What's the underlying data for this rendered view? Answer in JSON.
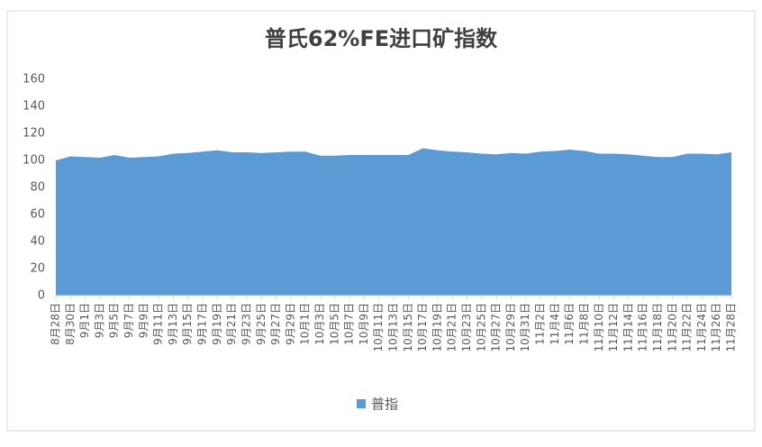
{
  "chart_data": {
    "type": "area",
    "title": "普氏62%FE进口矿指数",
    "categories": [
      "8月28日",
      "8月30日",
      "9月1日",
      "9月3日",
      "9月5日",
      "9月7日",
      "9月9日",
      "9月11日",
      "9月13日",
      "9月15日",
      "9月17日",
      "9月19日",
      "9月21日",
      "9月23日",
      "9月25日",
      "9月27日",
      "9月29日",
      "10月1日",
      "10月3日",
      "10月5日",
      "10月7日",
      "10月9日",
      "10月11日",
      "10月13日",
      "10月15日",
      "10月17日",
      "10月19日",
      "10月21日",
      "10月23日",
      "10月25日",
      "10月27日",
      "10月29日",
      "10月31日",
      "11月2日",
      "11月4日",
      "11月6日",
      "11月8日",
      "11月10日",
      "11月12日",
      "11月14日",
      "11月16日",
      "11月18日",
      "11月20日",
      "11月22日",
      "11月24日",
      "11月26日",
      "11月28日"
    ],
    "series": [
      {
        "name": "普指",
        "color": "#5b9bd5",
        "values": [
          100,
          103,
          102.5,
          102,
          104,
          102,
          102.5,
          103,
          105,
          105.5,
          106.5,
          107.5,
          106,
          106,
          105.5,
          106,
          106.5,
          106.5,
          103.5,
          103.5,
          104,
          104,
          104,
          104,
          104,
          109,
          107.5,
          106.5,
          106,
          105,
          104.5,
          105.5,
          105,
          106.5,
          107,
          108,
          107,
          105,
          105,
          104.5,
          103.5,
          102.5,
          102.5,
          105,
          105,
          104.5,
          106
        ]
      }
    ],
    "ylim": [
      0,
      160
    ],
    "yticks": [
      0,
      20,
      40,
      60,
      80,
      100,
      120,
      140,
      160
    ],
    "grid": false,
    "legend": "bottom"
  }
}
